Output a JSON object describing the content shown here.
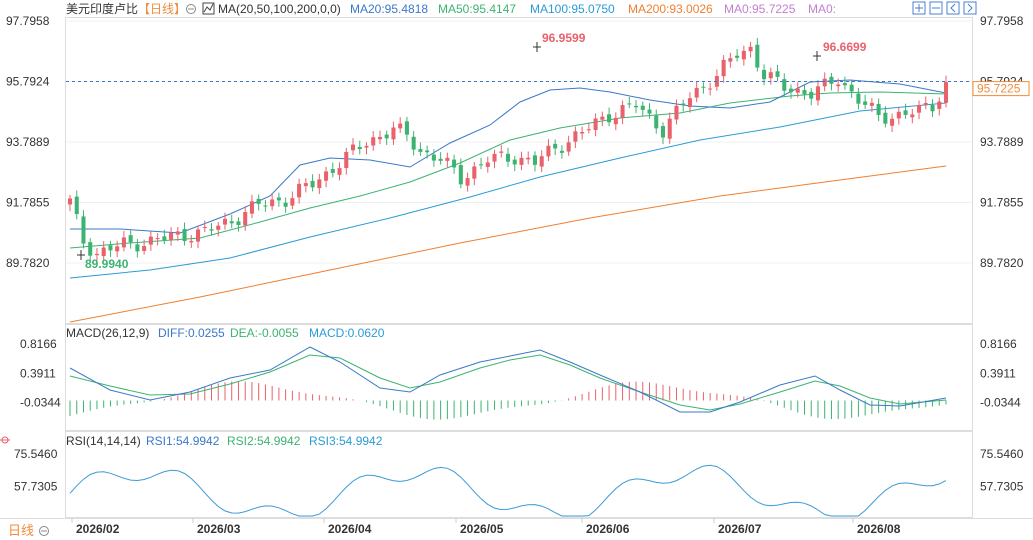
{
  "header": {
    "title": "美元印度卢比",
    "period": "【日线】",
    "period_icon": "circle-minus-icon",
    "ma_label": "MA(20,50,100,200,0,0)",
    "ma_values": [
      "MA20:95.4818",
      "MA50:95.4147",
      "MA100:95.0750",
      "MA200:93.0026",
      "MA0:95.7225",
      "MA0:"
    ],
    "icons": [
      "grid-plus-icon",
      "grid-minus-icon",
      "grid-left-icon",
      "grid-right-icon",
      "settings-icon",
      "close-icon"
    ]
  },
  "colors": {
    "up": "#e8616b",
    "down": "#3cb371",
    "ma20": "#3a78c8",
    "ma50": "#3cb371",
    "ma100": "#2a9bd6",
    "ma200": "#f07f2e",
    "ma0": "#c37fd0",
    "axis_text": "#333333",
    "grid": "#eeeeee",
    "current_price_bg": "#ffffff",
    "current_price_text": "#f08c3a"
  },
  "price_axis": {
    "ticks": [
      "97.7958",
      "95.7924",
      "93.7889",
      "91.7855",
      "89.7820"
    ],
    "current": "95.7225",
    "high_label": "96.9599",
    "high_label_2": "96.6699",
    "low_label": "89.9940"
  },
  "macd": {
    "label": "MACD(26,12,9)",
    "diff": "DIFF:0.0255",
    "dea": "DEA:-0.0055",
    "macd": "MACD:0.0620",
    "ticks": [
      "0.8166",
      "0.3911",
      "-0.0344"
    ]
  },
  "rsi": {
    "label": "RSI(14,14,14)",
    "rsi1": "RSI1:54.9942",
    "rsi2": "RSI2:54.9942",
    "rsi3": "RSI3:54.9942",
    "ticks": [
      "75.5460",
      "57.7305"
    ]
  },
  "footer": {
    "period_label": "日线",
    "dates": [
      "2026/02",
      "2026/03",
      "2026/04",
      "2026/05",
      "2026/06",
      "2026/07",
      "2026/08"
    ]
  },
  "chart_data": {
    "type": "candlestick",
    "title": "美元印度卢比 【日线】",
    "ylim": [
      89.0,
      98.0
    ],
    "ma_series": [
      {
        "name": "MA20",
        "last": 95.4818
      },
      {
        "name": "MA50",
        "last": 95.4147
      },
      {
        "name": "MA100",
        "last": 95.075
      },
      {
        "name": "MA200",
        "last": 93.0026
      },
      {
        "name": "MA0",
        "last": 95.7225
      }
    ],
    "highest": 96.9599,
    "second_high": 96.6699,
    "lowest": 89.994,
    "last_price": 95.7225
  }
}
